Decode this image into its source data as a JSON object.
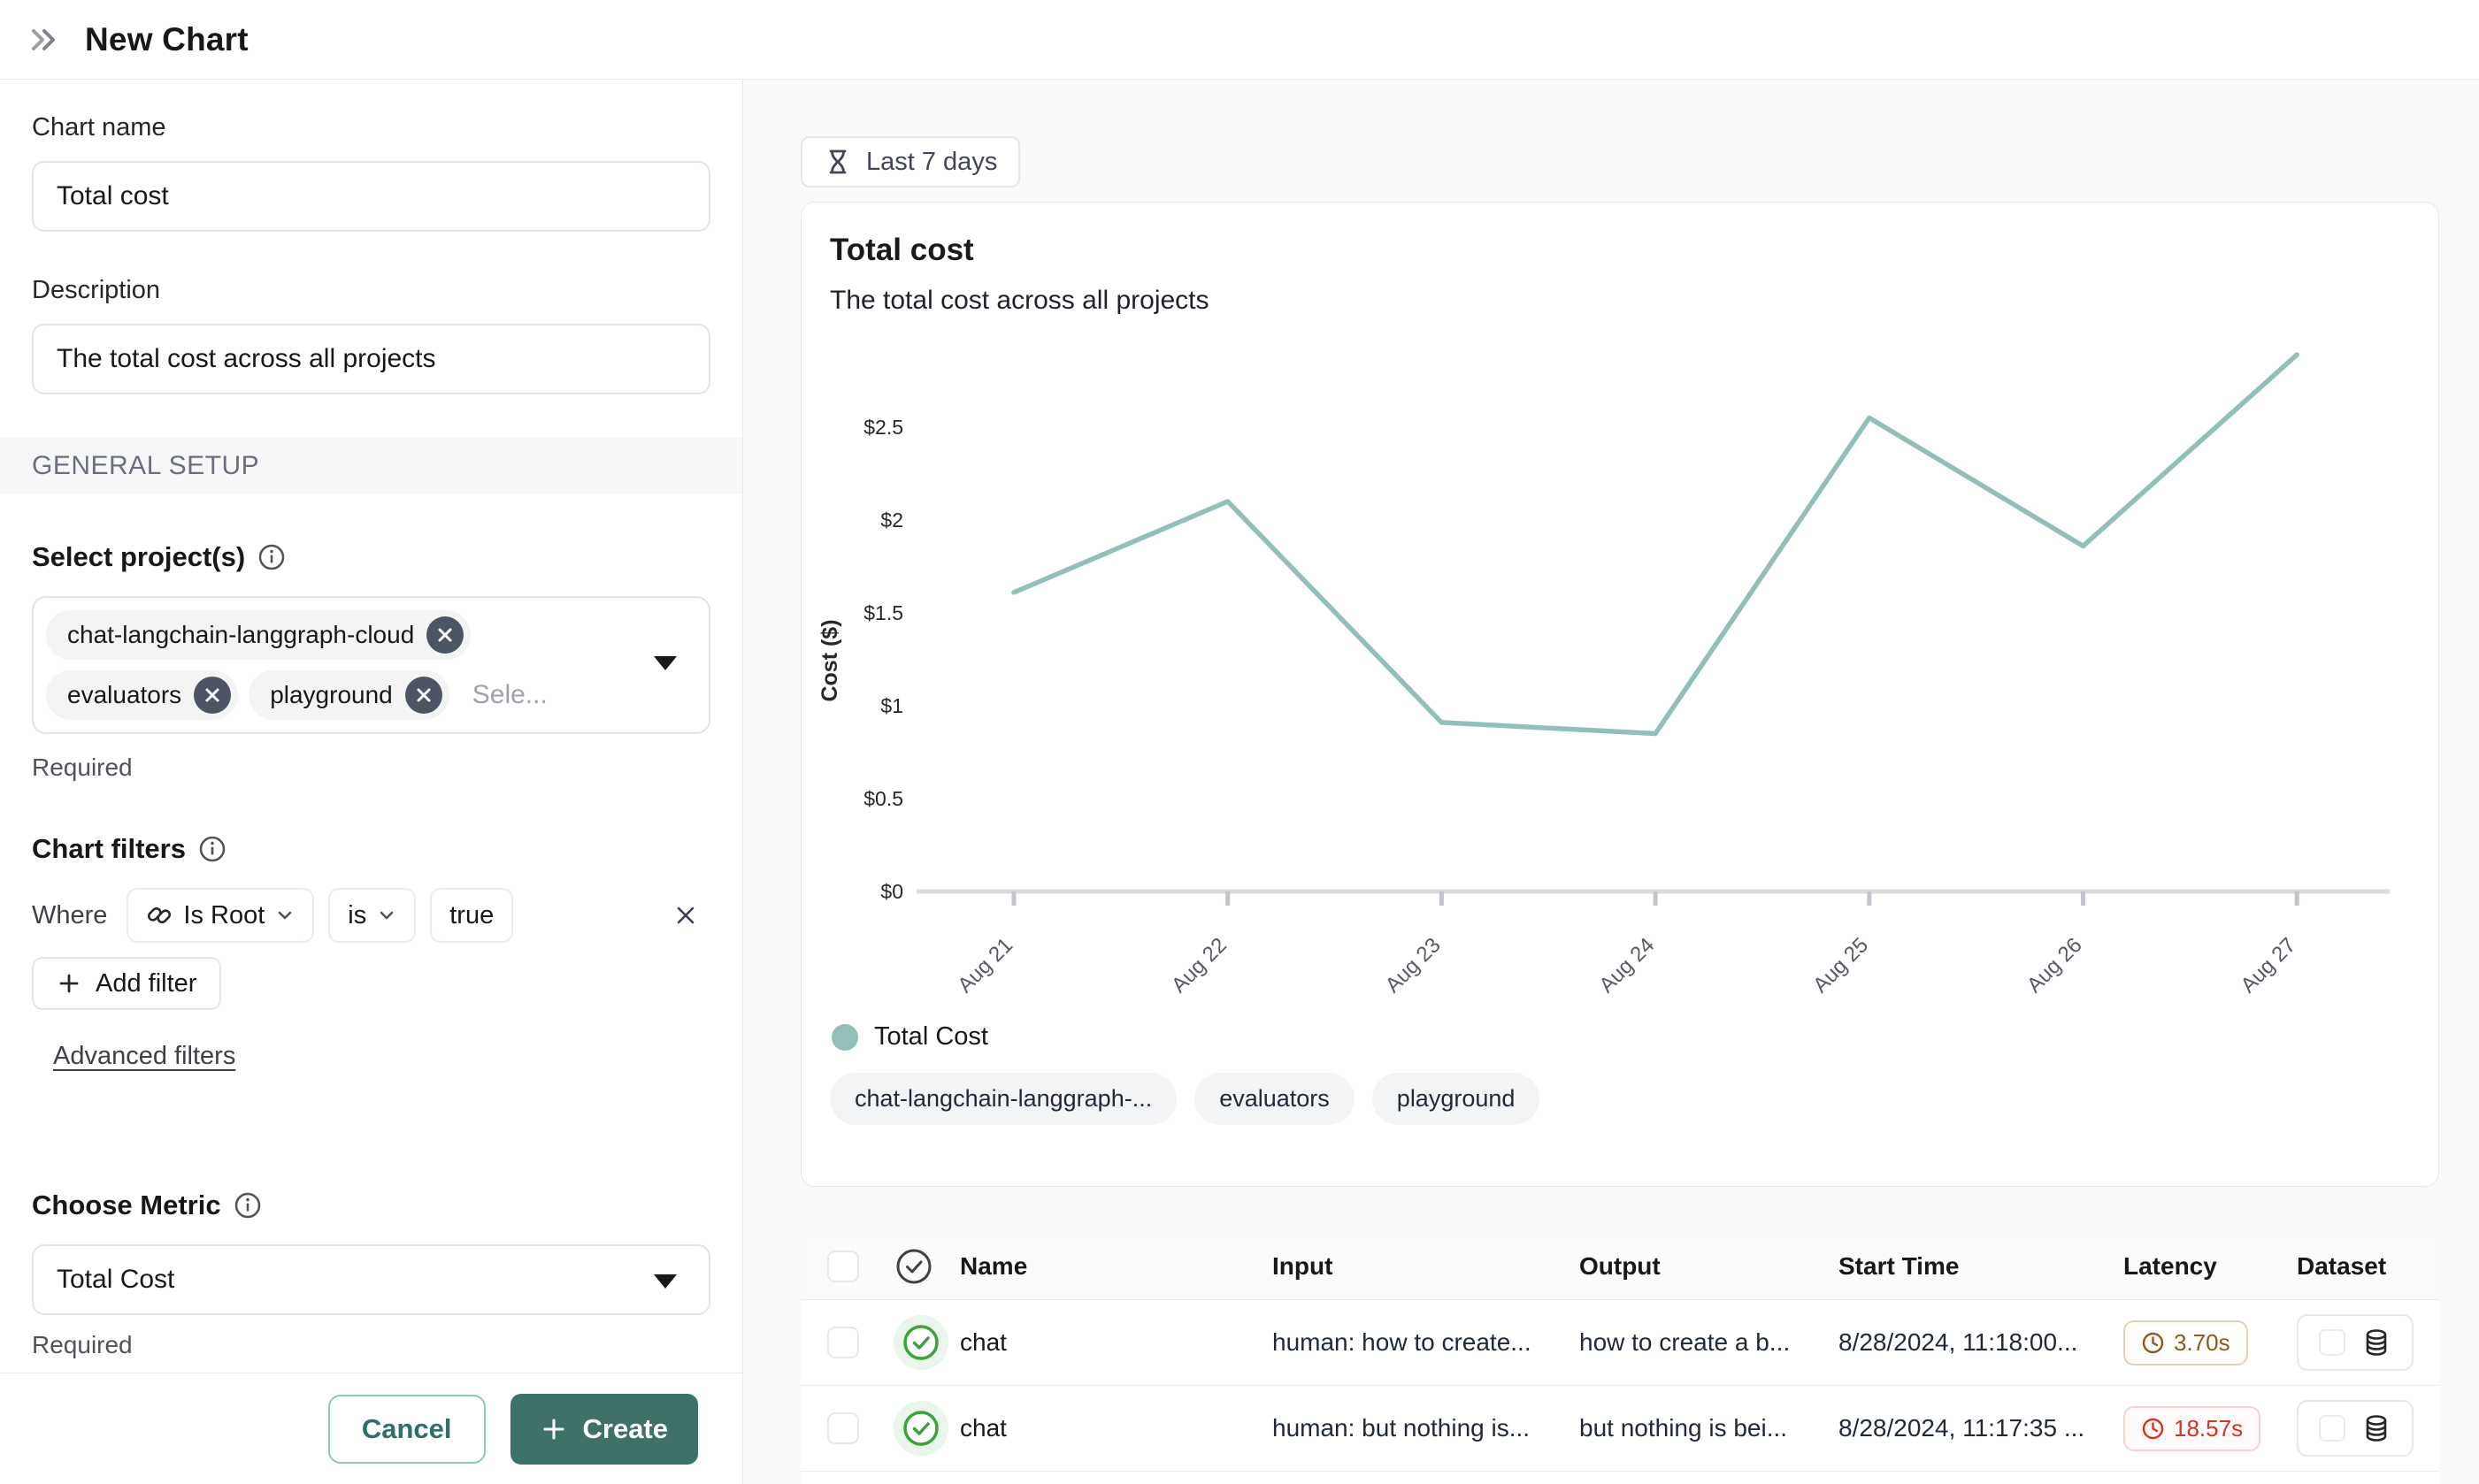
{
  "header": {
    "title": "New Chart"
  },
  "toolbar": {
    "time_range": "Last 7 days"
  },
  "sidebar": {
    "chart_name_label": "Chart name",
    "chart_name_value": "Total cost",
    "description_label": "Description",
    "description_value": "The total cost across all projects",
    "general_setup_label": "GENERAL SETUP",
    "select_projects_label": "Select project(s)",
    "project_tags": [
      "chat-langchain-langgraph-cloud",
      "evaluators",
      "playground"
    ],
    "select_placeholder": "Sele...",
    "required_projects": "Required",
    "chart_filters_label": "Chart filters",
    "where_label": "Where",
    "filter_field": "Is Root",
    "filter_operator": "is",
    "filter_value": "true",
    "add_filter_label": "Add filter",
    "advanced_filters_label": "Advanced filters",
    "choose_metric_label": "Choose Metric",
    "metric_value": "Total Cost",
    "required_metric": "Required",
    "cancel_label": "Cancel",
    "create_label": "Create"
  },
  "chart_card": {
    "title": "Total cost",
    "subtitle": "The total cost across all projects",
    "tags": [
      "chat-langchain-langgraph-...",
      "evaluators",
      "playground"
    ]
  },
  "chart_data": {
    "type": "line",
    "title": "Total cost",
    "xlabel": "",
    "ylabel": "Cost ($)",
    "categories": [
      "Aug 21",
      "Aug 22",
      "Aug 23",
      "Aug 24",
      "Aug 25",
      "Aug 26",
      "Aug 27"
    ],
    "series": [
      {
        "name": "Total Cost",
        "values": [
          1.61,
          2.1,
          0.91,
          0.85,
          2.55,
          1.86,
          2.89
        ]
      }
    ],
    "ylim": [
      0,
      3
    ],
    "yticks": [
      0,
      0.5,
      1,
      1.5,
      2,
      2.5
    ],
    "ytick_labels": [
      "$0",
      "$0.5",
      "$1",
      "$1.5",
      "$2",
      "$2.5"
    ],
    "line_color": "#92bfb9",
    "grid": false,
    "legend_position": "bottom"
  },
  "table": {
    "columns": [
      "Name",
      "Input",
      "Output",
      "Start Time",
      "Latency",
      "Dataset"
    ],
    "rows": [
      {
        "name": "chat",
        "input": "human: how to create...",
        "output": "how to create a b...",
        "start_time": "8/28/2024, 11:18:00...",
        "latency": "3.70s",
        "latency_level": "warn"
      },
      {
        "name": "chat",
        "input": "human: but nothing is...",
        "output": "but nothing is bei...",
        "start_time": "8/28/2024, 11:17:35 ...",
        "latency": "18.57s",
        "latency_level": "error"
      }
    ]
  },
  "colors": {
    "accent_teal": "#3e7269",
    "line_teal": "#92bfb9",
    "latency_warn": "#8a5a24",
    "latency_error": "#d93025",
    "success_green": "#3da23d"
  }
}
